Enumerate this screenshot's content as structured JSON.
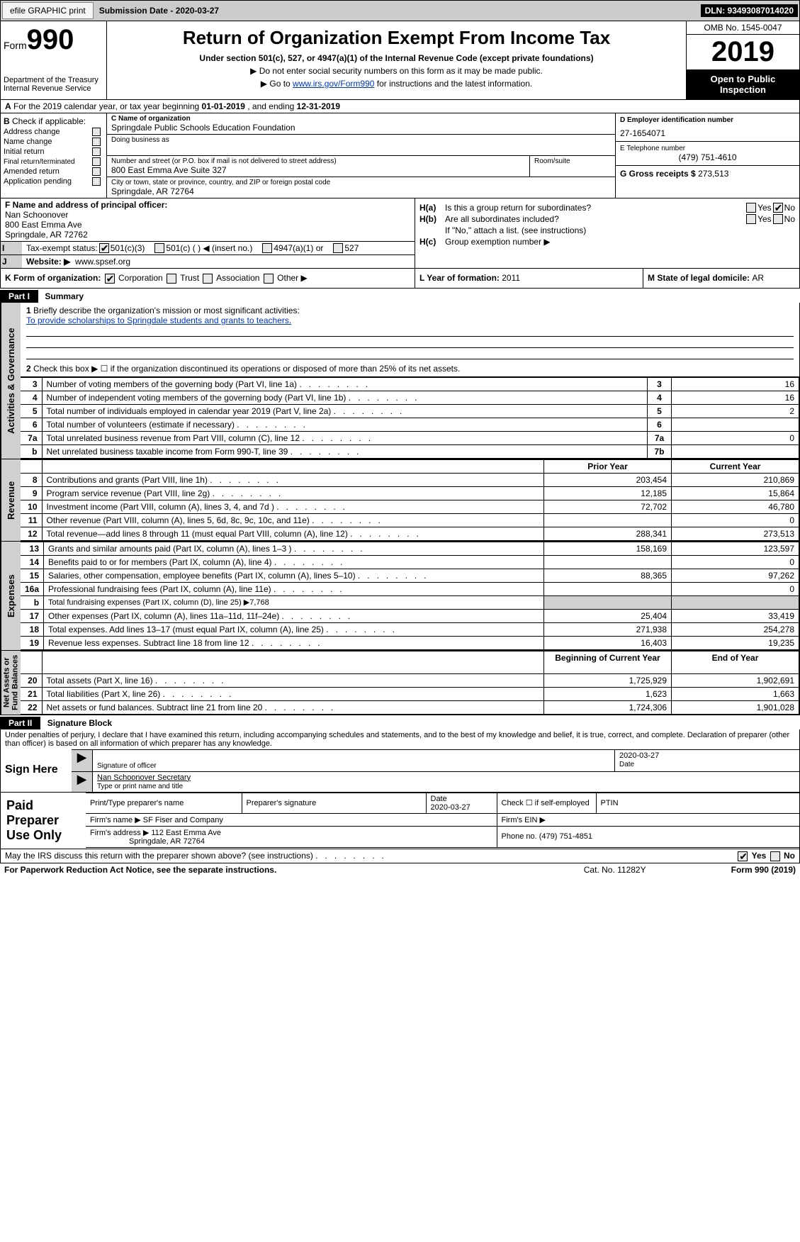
{
  "topbar": {
    "efile": "efile GRAPHIC print",
    "sub_label": "Submission Date - 2020-03-27",
    "dln": "DLN: 93493087014020"
  },
  "header": {
    "form_prefix": "Form",
    "form_num": "990",
    "dept": "Department of the Treasury\nInternal Revenue Service",
    "title": "Return of Organization Exempt From Income Tax",
    "subtitle": "Under section 501(c), 527, or 4947(a)(1) of the Internal Revenue Code (except private foundations)",
    "note1": "▶ Do not enter social security numbers on this form as it may be made public.",
    "note2_pre": "▶ Go to ",
    "note2_link": "www.irs.gov/Form990",
    "note2_post": " for instructions and the latest information.",
    "omb": "OMB No. 1545-0047",
    "year": "2019",
    "open": "Open to Public\nInspection"
  },
  "row_a": {
    "text_pre": "For the 2019 calendar year, or tax year beginning ",
    "begin": "01-01-2019",
    "mid": " , and ending ",
    "end": "12-31-2019"
  },
  "b": {
    "label": "Check if applicable:",
    "opts": [
      "Address change",
      "Name change",
      "Initial return",
      "Final return/terminated",
      "Amended return",
      "Application pending"
    ]
  },
  "c": {
    "name_lbl": "C Name of organization",
    "name": "Springdale Public Schools Education Foundation",
    "dba_lbl": "Doing business as",
    "dba": "",
    "addr_lbl": "Number and street (or P.O. box if mail is not delivered to street address)",
    "room_lbl": "Room/suite",
    "addr": "800 East Emma Ave Suite 327",
    "city_lbl": "City or town, state or province, country, and ZIP or foreign postal code",
    "city": "Springdale, AR  72764"
  },
  "d": {
    "lbl": "D Employer identification number",
    "val": "27-1654071"
  },
  "e": {
    "lbl": "E Telephone number",
    "val": "(479) 751-4610"
  },
  "g": {
    "lbl": "G Gross receipts $ ",
    "val": "273,513"
  },
  "f": {
    "lbl": "F Name and address of principal officer:",
    "name": "Nan Schoonover",
    "addr1": "800 East Emma Ave",
    "addr2": "Springdale, AR  72762"
  },
  "i": {
    "lbl": "Tax-exempt status:",
    "opts": [
      "501(c)(3)",
      "501(c) (  ) ◀ (insert no.)",
      "4947(a)(1) or",
      "527"
    ]
  },
  "j": {
    "lbl": "Website: ▶",
    "val": "www.spsef.org"
  },
  "h": {
    "a_lbl": "H(a)",
    "a_txt": "Is this a group return for subordinates?",
    "b_lbl": "H(b)",
    "b_txt": "Are all subordinates included?",
    "b_note": "If \"No,\" attach a list. (see instructions)",
    "c_lbl": "H(c)",
    "c_txt": "Group exemption number ▶"
  },
  "k": {
    "lbl": "K Form of organization:",
    "opts": [
      "Corporation",
      "Trust",
      "Association",
      "Other ▶"
    ]
  },
  "l": {
    "lbl": "L Year of formation: ",
    "val": "2011"
  },
  "m": {
    "lbl": "M State of legal domicile: ",
    "val": "AR"
  },
  "part1": {
    "hdr": "Part I",
    "title": "Summary",
    "q1_lbl": "1",
    "q1": "Briefly describe the organization's mission or most significant activities:",
    "mission": "To provide scholarships to Springdale students and grants to teachers.",
    "q2_lbl": "2",
    "q2": "Check this box ▶ ☐ if the organization discontinued its operations or disposed of more than 25% of its net assets.",
    "lines_gov": [
      {
        "n": "3",
        "d": "Number of voting members of the governing body (Part VI, line 1a)",
        "ln": "3",
        "v": "16"
      },
      {
        "n": "4",
        "d": "Number of independent voting members of the governing body (Part VI, line 1b)",
        "ln": "4",
        "v": "16"
      },
      {
        "n": "5",
        "d": "Total number of individuals employed in calendar year 2019 (Part V, line 2a)",
        "ln": "5",
        "v": "2"
      },
      {
        "n": "6",
        "d": "Total number of volunteers (estimate if necessary)",
        "ln": "6",
        "v": ""
      },
      {
        "n": "7a",
        "d": "Total unrelated business revenue from Part VIII, column (C), line 12",
        "ln": "7a",
        "v": "0"
      },
      {
        "n": "b",
        "d": "Net unrelated business taxable income from Form 990-T, line 39",
        "ln": "7b",
        "v": ""
      }
    ],
    "col_hdr_prior": "Prior Year",
    "col_hdr_curr": "Current Year",
    "rev": [
      {
        "n": "8",
        "d": "Contributions and grants (Part VIII, line 1h)",
        "p": "203,454",
        "c": "210,869"
      },
      {
        "n": "9",
        "d": "Program service revenue (Part VIII, line 2g)",
        "p": "12,185",
        "c": "15,864"
      },
      {
        "n": "10",
        "d": "Investment income (Part VIII, column (A), lines 3, 4, and 7d )",
        "p": "72,702",
        "c": "46,780"
      },
      {
        "n": "11",
        "d": "Other revenue (Part VIII, column (A), lines 5, 6d, 8c, 9c, 10c, and 11e)",
        "p": "",
        "c": "0"
      },
      {
        "n": "12",
        "d": "Total revenue—add lines 8 through 11 (must equal Part VIII, column (A), line 12)",
        "p": "288,341",
        "c": "273,513"
      }
    ],
    "exp": [
      {
        "n": "13",
        "d": "Grants and similar amounts paid (Part IX, column (A), lines 1–3 )",
        "p": "158,169",
        "c": "123,597"
      },
      {
        "n": "14",
        "d": "Benefits paid to or for members (Part IX, column (A), line 4)",
        "p": "",
        "c": "0"
      },
      {
        "n": "15",
        "d": "Salaries, other compensation, employee benefits (Part IX, column (A), lines 5–10)",
        "p": "88,365",
        "c": "97,262"
      },
      {
        "n": "16a",
        "d": "Professional fundraising fees (Part IX, column (A), line 11e)",
        "p": "",
        "c": "0"
      },
      {
        "n": "b",
        "d": "Total fundraising expenses (Part IX, column (D), line 25) ▶7,768",
        "p": "SHADE",
        "c": "SHADE"
      },
      {
        "n": "17",
        "d": "Other expenses (Part IX, column (A), lines 11a–11d, 11f–24e)",
        "p": "25,404",
        "c": "33,419"
      },
      {
        "n": "18",
        "d": "Total expenses. Add lines 13–17 (must equal Part IX, column (A), line 25)",
        "p": "271,938",
        "c": "254,278"
      },
      {
        "n": "19",
        "d": "Revenue less expenses. Subtract line 18 from line 12",
        "p": "16,403",
        "c": "19,235"
      }
    ],
    "col_hdr_beg": "Beginning of Current Year",
    "col_hdr_end": "End of Year",
    "net": [
      {
        "n": "20",
        "d": "Total assets (Part X, line 16)",
        "p": "1,725,929",
        "c": "1,902,691"
      },
      {
        "n": "21",
        "d": "Total liabilities (Part X, line 26)",
        "p": "1,623",
        "c": "1,663"
      },
      {
        "n": "22",
        "d": "Net assets or fund balances. Subtract line 21 from line 20",
        "p": "1,724,306",
        "c": "1,901,028"
      }
    ],
    "vlabels": {
      "gov": "Activities & Governance",
      "rev": "Revenue",
      "exp": "Expenses",
      "net": "Net Assets or\nFund Balances"
    }
  },
  "part2": {
    "hdr": "Part II",
    "title": "Signature Block",
    "perjury": "Under penalties of perjury, I declare that I have examined this return, including accompanying schedules and statements, and to the best of my knowledge and belief, it is true, correct, and complete. Declaration of preparer (other than officer) is based on all information of which preparer has any knowledge.",
    "sign_here": "Sign Here",
    "sig_officer": "Signature of officer",
    "sig_date": "2020-03-27",
    "date_lbl": "Date",
    "name_title": "Nan Schoonover Secretary",
    "name_title_lbl": "Type or print name and title",
    "paid": "Paid\nPreparer\nUse Only",
    "prep_name_lbl": "Print/Type preparer's name",
    "prep_sig_lbl": "Preparer's signature",
    "prep_date_lbl": "Date",
    "prep_date": "2020-03-27",
    "check_if": "Check ☐ if self-employed",
    "ptin": "PTIN",
    "firm_name_lbl": "Firm's name    ▶",
    "firm_name": "SF Fiser and Company",
    "firm_ein": "Firm's EIN ▶",
    "firm_addr_lbl": "Firm's address ▶",
    "firm_addr1": "112 East Emma Ave",
    "firm_addr2": "Springdale, AR  72764",
    "phone": "Phone no. (479) 751-4851"
  },
  "footer": {
    "discuss": "May the IRS discuss this return with the preparer shown above? (see instructions)",
    "paperwork": "For Paperwork Reduction Act Notice, see the separate instructions.",
    "catno": "Cat. No. 11282Y",
    "formno": "Form 990 (2019)"
  }
}
